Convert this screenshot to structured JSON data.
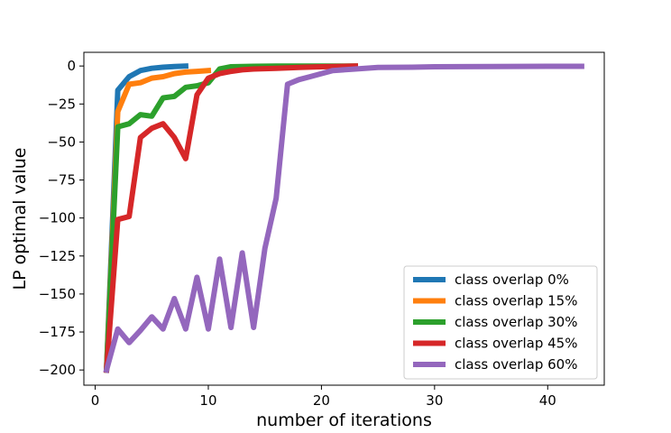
{
  "chart_data": {
    "type": "line",
    "title": "",
    "xlabel": "number of iterations",
    "ylabel": "LP optimal value",
    "xlim": [
      -1,
      45
    ],
    "ylim": [
      -210,
      9
    ],
    "xticks": [
      0,
      10,
      20,
      30,
      40
    ],
    "yticks": [
      0,
      -25,
      -50,
      -75,
      -100,
      -125,
      -150,
      -175,
      -200
    ],
    "grid": false,
    "legend_position": "bottom-right",
    "series": [
      {
        "name": "class overlap 0%",
        "color": "#1f77b4",
        "x": [
          1,
          2,
          3,
          4,
          5,
          6,
          7,
          8
        ],
        "y": [
          -200,
          -16,
          -7,
          -3,
          -1.5,
          -0.8,
          -0.3,
          0
        ]
      },
      {
        "name": "class overlap 15%",
        "color": "#ff7f0e",
        "x": [
          1,
          2,
          3,
          4,
          5,
          6,
          7,
          8,
          9,
          10
        ],
        "y": [
          -200,
          -30,
          -12,
          -11,
          -8,
          -7,
          -5,
          -4,
          -3.5,
          -3
        ]
      },
      {
        "name": "class overlap 30%",
        "color": "#2ca02c",
        "x": [
          1,
          2,
          3,
          4,
          5,
          6,
          7,
          8,
          9,
          10,
          11,
          12,
          14,
          16,
          18,
          20,
          23
        ],
        "y": [
          -200,
          -40,
          -38,
          -32,
          -33,
          -21,
          -20,
          -14,
          -13,
          -11,
          -2,
          -0.5,
          -0.2,
          0,
          0,
          0,
          0
        ]
      },
      {
        "name": "class overlap 45%",
        "color": "#d62728",
        "x": [
          1,
          2,
          3,
          4,
          5,
          6,
          7,
          8,
          9,
          10,
          11,
          12,
          13,
          14,
          16,
          18,
          20,
          23
        ],
        "y": [
          -200,
          -101,
          -99,
          -47,
          -41,
          -38,
          -47,
          -61,
          -19,
          -8,
          -5,
          -3.5,
          -2.5,
          -2,
          -1.5,
          -1,
          -0.5,
          0
        ]
      },
      {
        "name": "class overlap 60%",
        "color": "#9467bd",
        "x": [
          1,
          2,
          3,
          4,
          5,
          6,
          7,
          8,
          9,
          10,
          11,
          12,
          13,
          14,
          15,
          16,
          17,
          18,
          19,
          20,
          21,
          23,
          25,
          28,
          30,
          35,
          40,
          43
        ],
        "y": [
          -200,
          -173,
          -182,
          -174,
          -165,
          -173,
          -153,
          -173,
          -139,
          -173,
          -127,
          -172,
          -123,
          -172,
          -120,
          -87,
          -12,
          -9,
          -7,
          -5,
          -3,
          -2,
          -1,
          -0.8,
          -0.5,
          -0.3,
          -0.2,
          -0.2
        ]
      }
    ]
  }
}
